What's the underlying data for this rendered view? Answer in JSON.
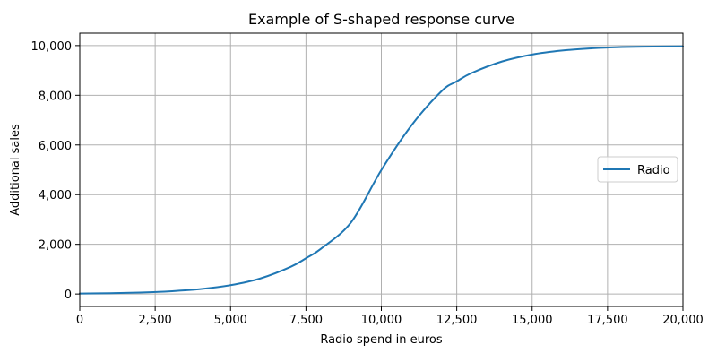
{
  "chart_data": {
    "type": "line",
    "title": "Example of S-shaped response curve",
    "xlabel": "Radio spend in euros",
    "ylabel": "Additional sales",
    "xlim": [
      0,
      20000
    ],
    "ylim": [
      -500,
      10500
    ],
    "x_ticks": [
      0,
      2500,
      5000,
      7500,
      10000,
      12500,
      15000,
      17500,
      20000
    ],
    "x_tick_labels": [
      "0",
      "2,500",
      "5,000",
      "7,500",
      "10,000",
      "12,500",
      "15,000",
      "17,500",
      "20,000"
    ],
    "y_ticks": [
      0,
      2000,
      4000,
      6000,
      8000,
      10000
    ],
    "y_tick_labels": [
      "0",
      "2,000",
      "4,000",
      "6,000",
      "8,000",
      "10,000"
    ],
    "grid": true,
    "legend_position": "center-right",
    "series": [
      {
        "name": "Radio",
        "color": "#1f77b4",
        "x": [
          0,
          1000,
          2000,
          2500,
          3000,
          4000,
          5000,
          6000,
          7000,
          7500,
          8000,
          9000,
          10000,
          11000,
          12000,
          12500,
          13000,
          14000,
          15000,
          16000,
          17000,
          17500,
          18000,
          19000,
          20000
        ],
        "y": [
          18,
          33,
          60,
          81,
          110,
          197,
          356,
          632,
          1099,
          1440,
          1824,
          2890,
          4990,
          6790,
          8170,
          8560,
          8900,
          9360,
          9640,
          9800,
          9890,
          9920,
          9940,
          9960,
          9970
        ]
      }
    ]
  }
}
